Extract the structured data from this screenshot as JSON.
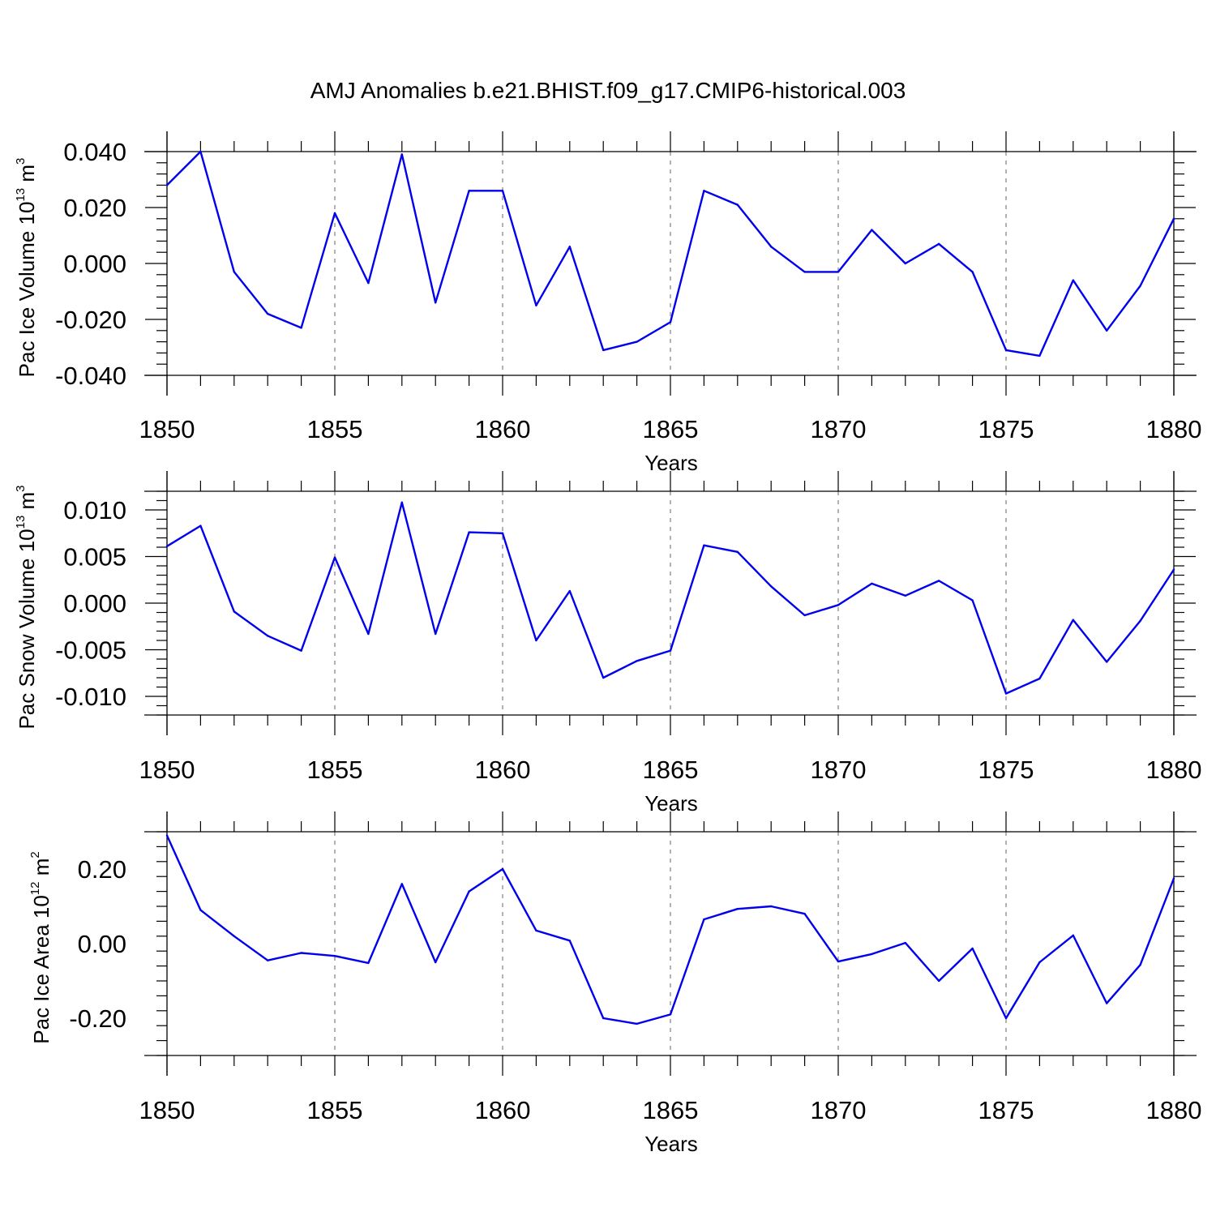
{
  "title": "AMJ Anomalies b.e21.BHIST.f09_g17.CMIP6-historical.003",
  "colors": {
    "series": "#0000ee",
    "axis": "#000000",
    "grid": "#808080"
  },
  "chart_data": [
    {
      "type": "line",
      "ylabel": {
        "text": "Pac Ice Volume 10",
        "exp": "13",
        "unit": " m",
        "unit_exp": "3"
      },
      "xlabel": "Years",
      "xlim": [
        1850,
        1880
      ],
      "ylim": [
        -0.04,
        0.04
      ],
      "yticks": [
        0.04,
        0.02,
        0.0,
        -0.02,
        -0.04
      ],
      "ytick_labels": [
        "0.040",
        "0.020",
        "0.000",
        "-0.020",
        "-0.040"
      ],
      "xticks": [
        1850,
        1855,
        1860,
        1865,
        1870,
        1875,
        1880
      ],
      "xtick_labels": [
        "1850",
        "1855",
        "1860",
        "1865",
        "1870",
        "1875",
        "1880"
      ],
      "grid": "vertical dashed at labeled years",
      "x": [
        1850,
        1851,
        1852,
        1853,
        1854,
        1855,
        1856,
        1857,
        1858,
        1859,
        1860,
        1861,
        1862,
        1863,
        1864,
        1865,
        1866,
        1867,
        1868,
        1869,
        1870,
        1871,
        1872,
        1873,
        1874,
        1875,
        1876,
        1877,
        1878,
        1879,
        1880
      ],
      "values": [
        0.028,
        0.04,
        -0.003,
        -0.018,
        -0.023,
        0.018,
        -0.007,
        0.039,
        -0.014,
        0.026,
        0.026,
        -0.015,
        0.006,
        -0.031,
        -0.028,
        -0.021,
        0.026,
        0.021,
        0.006,
        -0.003,
        -0.003,
        0.012,
        0.0,
        0.007,
        -0.003,
        -0.031,
        -0.033,
        -0.006,
        -0.024,
        -0.008,
        0.016
      ]
    },
    {
      "type": "line",
      "ylabel": {
        "text": "Pac Snow Volume 10",
        "exp": "13",
        "unit": " m",
        "unit_exp": "3"
      },
      "xlabel": "Years",
      "xlim": [
        1850,
        1880
      ],
      "ylim": [
        -0.012,
        0.012
      ],
      "yticks": [
        0.01,
        0.005,
        0.0,
        -0.005,
        -0.01
      ],
      "ytick_labels": [
        "0.010",
        "0.005",
        "0.000",
        "-0.005",
        "-0.010"
      ],
      "xticks": [
        1850,
        1855,
        1860,
        1865,
        1870,
        1875,
        1880
      ],
      "xtick_labels": [
        "1850",
        "1855",
        "1860",
        "1865",
        "1870",
        "1875",
        "1880"
      ],
      "grid": "vertical dashed at labeled years",
      "x": [
        1850,
        1851,
        1852,
        1853,
        1854,
        1855,
        1856,
        1857,
        1858,
        1859,
        1860,
        1861,
        1862,
        1863,
        1864,
        1865,
        1866,
        1867,
        1868,
        1869,
        1870,
        1871,
        1872,
        1873,
        1874,
        1875,
        1876,
        1877,
        1878,
        1879,
        1880
      ],
      "values": [
        0.0061,
        0.0083,
        -0.0009,
        -0.0035,
        -0.0051,
        0.0049,
        -0.0033,
        0.0108,
        -0.0033,
        0.0076,
        0.0075,
        -0.004,
        0.0013,
        -0.008,
        -0.0062,
        -0.0051,
        0.0062,
        0.0055,
        0.0018,
        -0.0013,
        -0.0002,
        0.0021,
        0.0008,
        0.0024,
        0.0003,
        -0.0097,
        -0.0081,
        -0.0018,
        -0.0063,
        -0.0019,
        0.0036
      ]
    },
    {
      "type": "line",
      "ylabel": {
        "text": "Pac Ice Area 10",
        "exp": "12",
        "unit": " m",
        "unit_exp": "2"
      },
      "xlabel": "Years",
      "xlim": [
        1850,
        1880
      ],
      "ylim": [
        -0.3,
        0.3
      ],
      "yticks": [
        0.2,
        0.0,
        -0.2
      ],
      "ytick_labels": [
        "0.20",
        "0.00",
        "-0.20"
      ],
      "xticks": [
        1850,
        1855,
        1860,
        1865,
        1870,
        1875,
        1880
      ],
      "xtick_labels": [
        "1850",
        "1855",
        "1860",
        "1865",
        "1870",
        "1875",
        "1880"
      ],
      "grid": "vertical dashed at labeled years",
      "x": [
        1850,
        1851,
        1852,
        1853,
        1854,
        1855,
        1856,
        1857,
        1858,
        1859,
        1860,
        1861,
        1862,
        1863,
        1864,
        1865,
        1866,
        1867,
        1868,
        1869,
        1870,
        1871,
        1872,
        1873,
        1874,
        1875,
        1876,
        1877,
        1878,
        1879,
        1880
      ],
      "values": [
        0.29,
        0.09,
        0.02,
        -0.045,
        -0.025,
        -0.033,
        -0.052,
        0.16,
        -0.05,
        0.14,
        0.2,
        0.035,
        0.008,
        -0.2,
        -0.215,
        -0.19,
        0.065,
        0.093,
        0.1,
        0.08,
        -0.048,
        -0.028,
        0.002,
        -0.1,
        -0.013,
        -0.2,
        -0.05,
        0.022,
        -0.16,
        -0.057,
        0.175
      ]
    }
  ]
}
